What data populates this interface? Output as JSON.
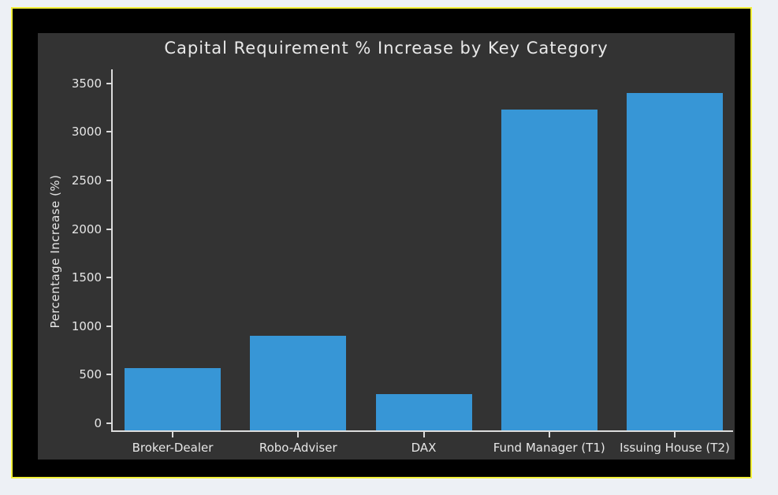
{
  "window": {
    "page_background": "#edf0f5",
    "frame_background": "#000000",
    "frame_border_color": "#f2ef38"
  },
  "chart_data": {
    "type": "bar",
    "title": "Capital Requirement % Increase by Key Category",
    "xlabel": "",
    "ylabel": "Percentage Increase (%)",
    "categories": [
      "Broker-Dealer",
      "Robo-Adviser",
      "DAX",
      "Fund Manager (T1)",
      "Issuing House (T2)"
    ],
    "values": [
      567,
      900,
      300,
      3233,
      3400
    ],
    "yticks": [
      0,
      500,
      1000,
      1500,
      2000,
      2500,
      3000,
      3500
    ],
    "ylim": [
      0,
      3500
    ],
    "grid": false,
    "legend": false,
    "style": "xkcd-dark",
    "colors": {
      "bar": "#3796d6",
      "figure_background": "#333333",
      "text": "#e6e6e6",
      "axis": "#dcdcdc"
    }
  }
}
